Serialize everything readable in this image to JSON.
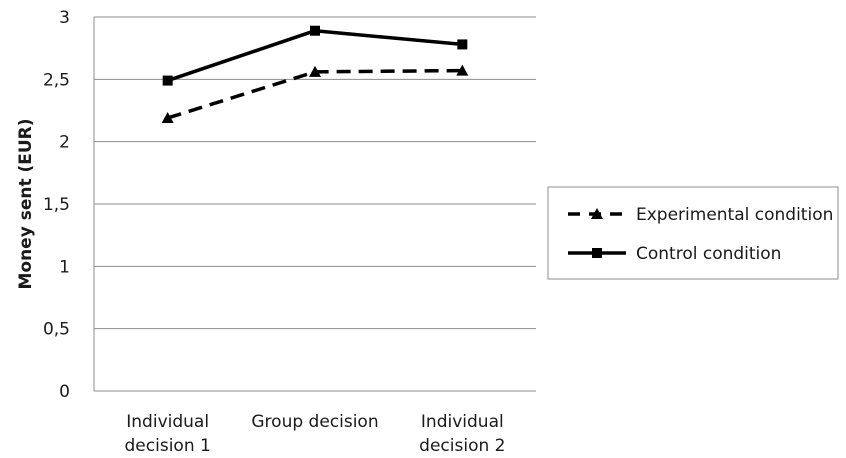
{
  "chart_data": {
    "type": "line",
    "title": "",
    "xlabel": "",
    "ylabel": "Money sent (EUR)",
    "categories": [
      [
        "Individual",
        "decision 1"
      ],
      [
        "Group decision"
      ],
      [
        "Individual",
        "decision 2"
      ]
    ],
    "ylim": [
      0,
      3
    ],
    "yticks": [
      "0",
      "0,5",
      "1",
      "1,5",
      "2",
      "2,5",
      "3"
    ],
    "yticks_values": [
      0,
      0.5,
      1,
      1.5,
      2,
      2.5,
      3
    ],
    "grid": true,
    "legend_position": "right",
    "series": [
      {
        "name": "Experimental condition",
        "values": [
          2.19,
          2.56,
          2.57
        ],
        "line_style": "dashed",
        "marker": "triangle",
        "color": "#000000"
      },
      {
        "name": "Control condition",
        "values": [
          2.49,
          2.89,
          2.78
        ],
        "line_style": "solid",
        "marker": "square",
        "color": "#000000"
      }
    ]
  }
}
